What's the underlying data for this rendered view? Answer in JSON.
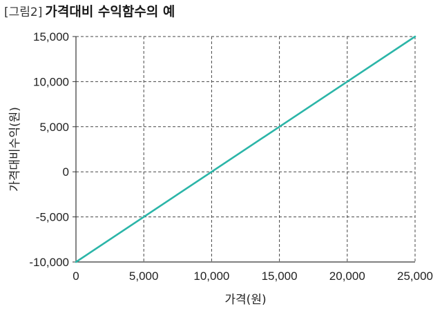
{
  "figure": {
    "label": "[그림2]",
    "title": "가격대비 수익함수의 예"
  },
  "colors": {
    "line": "#2bb5a8",
    "grid": "#444444",
    "axis": "#333333"
  },
  "chart_data": {
    "type": "line",
    "title": "가격대비 수익함수의 예",
    "xlabel": "가격(원)",
    "ylabel": "가격대비수익(원)",
    "xlim": [
      0,
      25000
    ],
    "ylim": [
      -10000,
      15000
    ],
    "xticks": [
      0,
      5000,
      10000,
      15000,
      20000,
      25000
    ],
    "yticks": [
      -10000,
      -5000,
      0,
      5000,
      10000,
      15000
    ],
    "xtick_labels": [
      "0",
      "5,000",
      "10,000",
      "15,000",
      "20,000",
      "25,000"
    ],
    "ytick_labels": [
      "-10,000",
      "-5,000",
      "0",
      "5,000",
      "10,000",
      "15,000"
    ],
    "grid": true,
    "series": [
      {
        "x": [
          0,
          25000
        ],
        "y": [
          -10000,
          15000
        ]
      }
    ]
  }
}
